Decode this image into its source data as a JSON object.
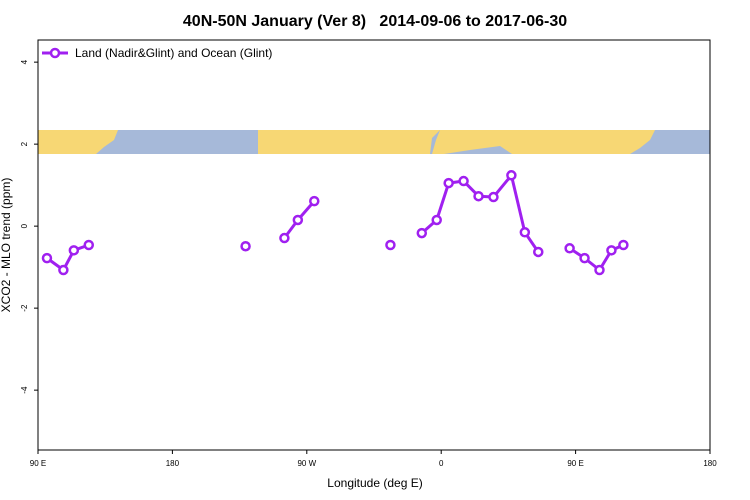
{
  "chart_data": {
    "type": "line",
    "title": "40N-50N January (Ver 8)   2014-09-06 to 2017-06-30",
    "x_label": "Longitude (deg E)",
    "y_label": "XCO2 - MLO trend (ppm)",
    "xlim": [
      90,
      540
    ],
    "ylim": [
      -5.46,
      4.54
    ],
    "xticks": [
      {
        "value": 90,
        "label": "90 E"
      },
      {
        "value": 180,
        "label": "180"
      },
      {
        "value": 270,
        "label": "90 W"
      },
      {
        "value": 360,
        "label": "0"
      },
      {
        "value": 450,
        "label": "90 E"
      },
      {
        "value": 540,
        "label": "180"
      }
    ],
    "yticks": [
      -4,
      -2,
      0,
      2,
      4
    ],
    "legend": "top-left",
    "x": [
      96,
      107,
      114,
      124,
      176,
      229,
      242,
      255,
      264,
      275,
      300,
      326,
      337,
      347,
      357,
      365,
      375,
      385,
      395,
      407,
      416,
      425,
      435,
      446,
      456,
      466,
      474,
      482
    ],
    "series": [
      {
        "name": "Land (Nadir&Glint) and Ocean (Glint)",
        "color": "#a020f0",
        "values": [
          -0.78,
          -1.07,
          -0.59,
          -0.46,
          null,
          -0.49,
          null,
          -0.29,
          0.15,
          0.61,
          null,
          -0.46,
          null,
          -0.17,
          0.15,
          1.05,
          1.1,
          0.73,
          0.71,
          1.24,
          -0.15,
          -0.63,
          null,
          -0.54,
          -0.78,
          -1.07,
          -0.59,
          -0.46
        ]
      }
    ]
  }
}
